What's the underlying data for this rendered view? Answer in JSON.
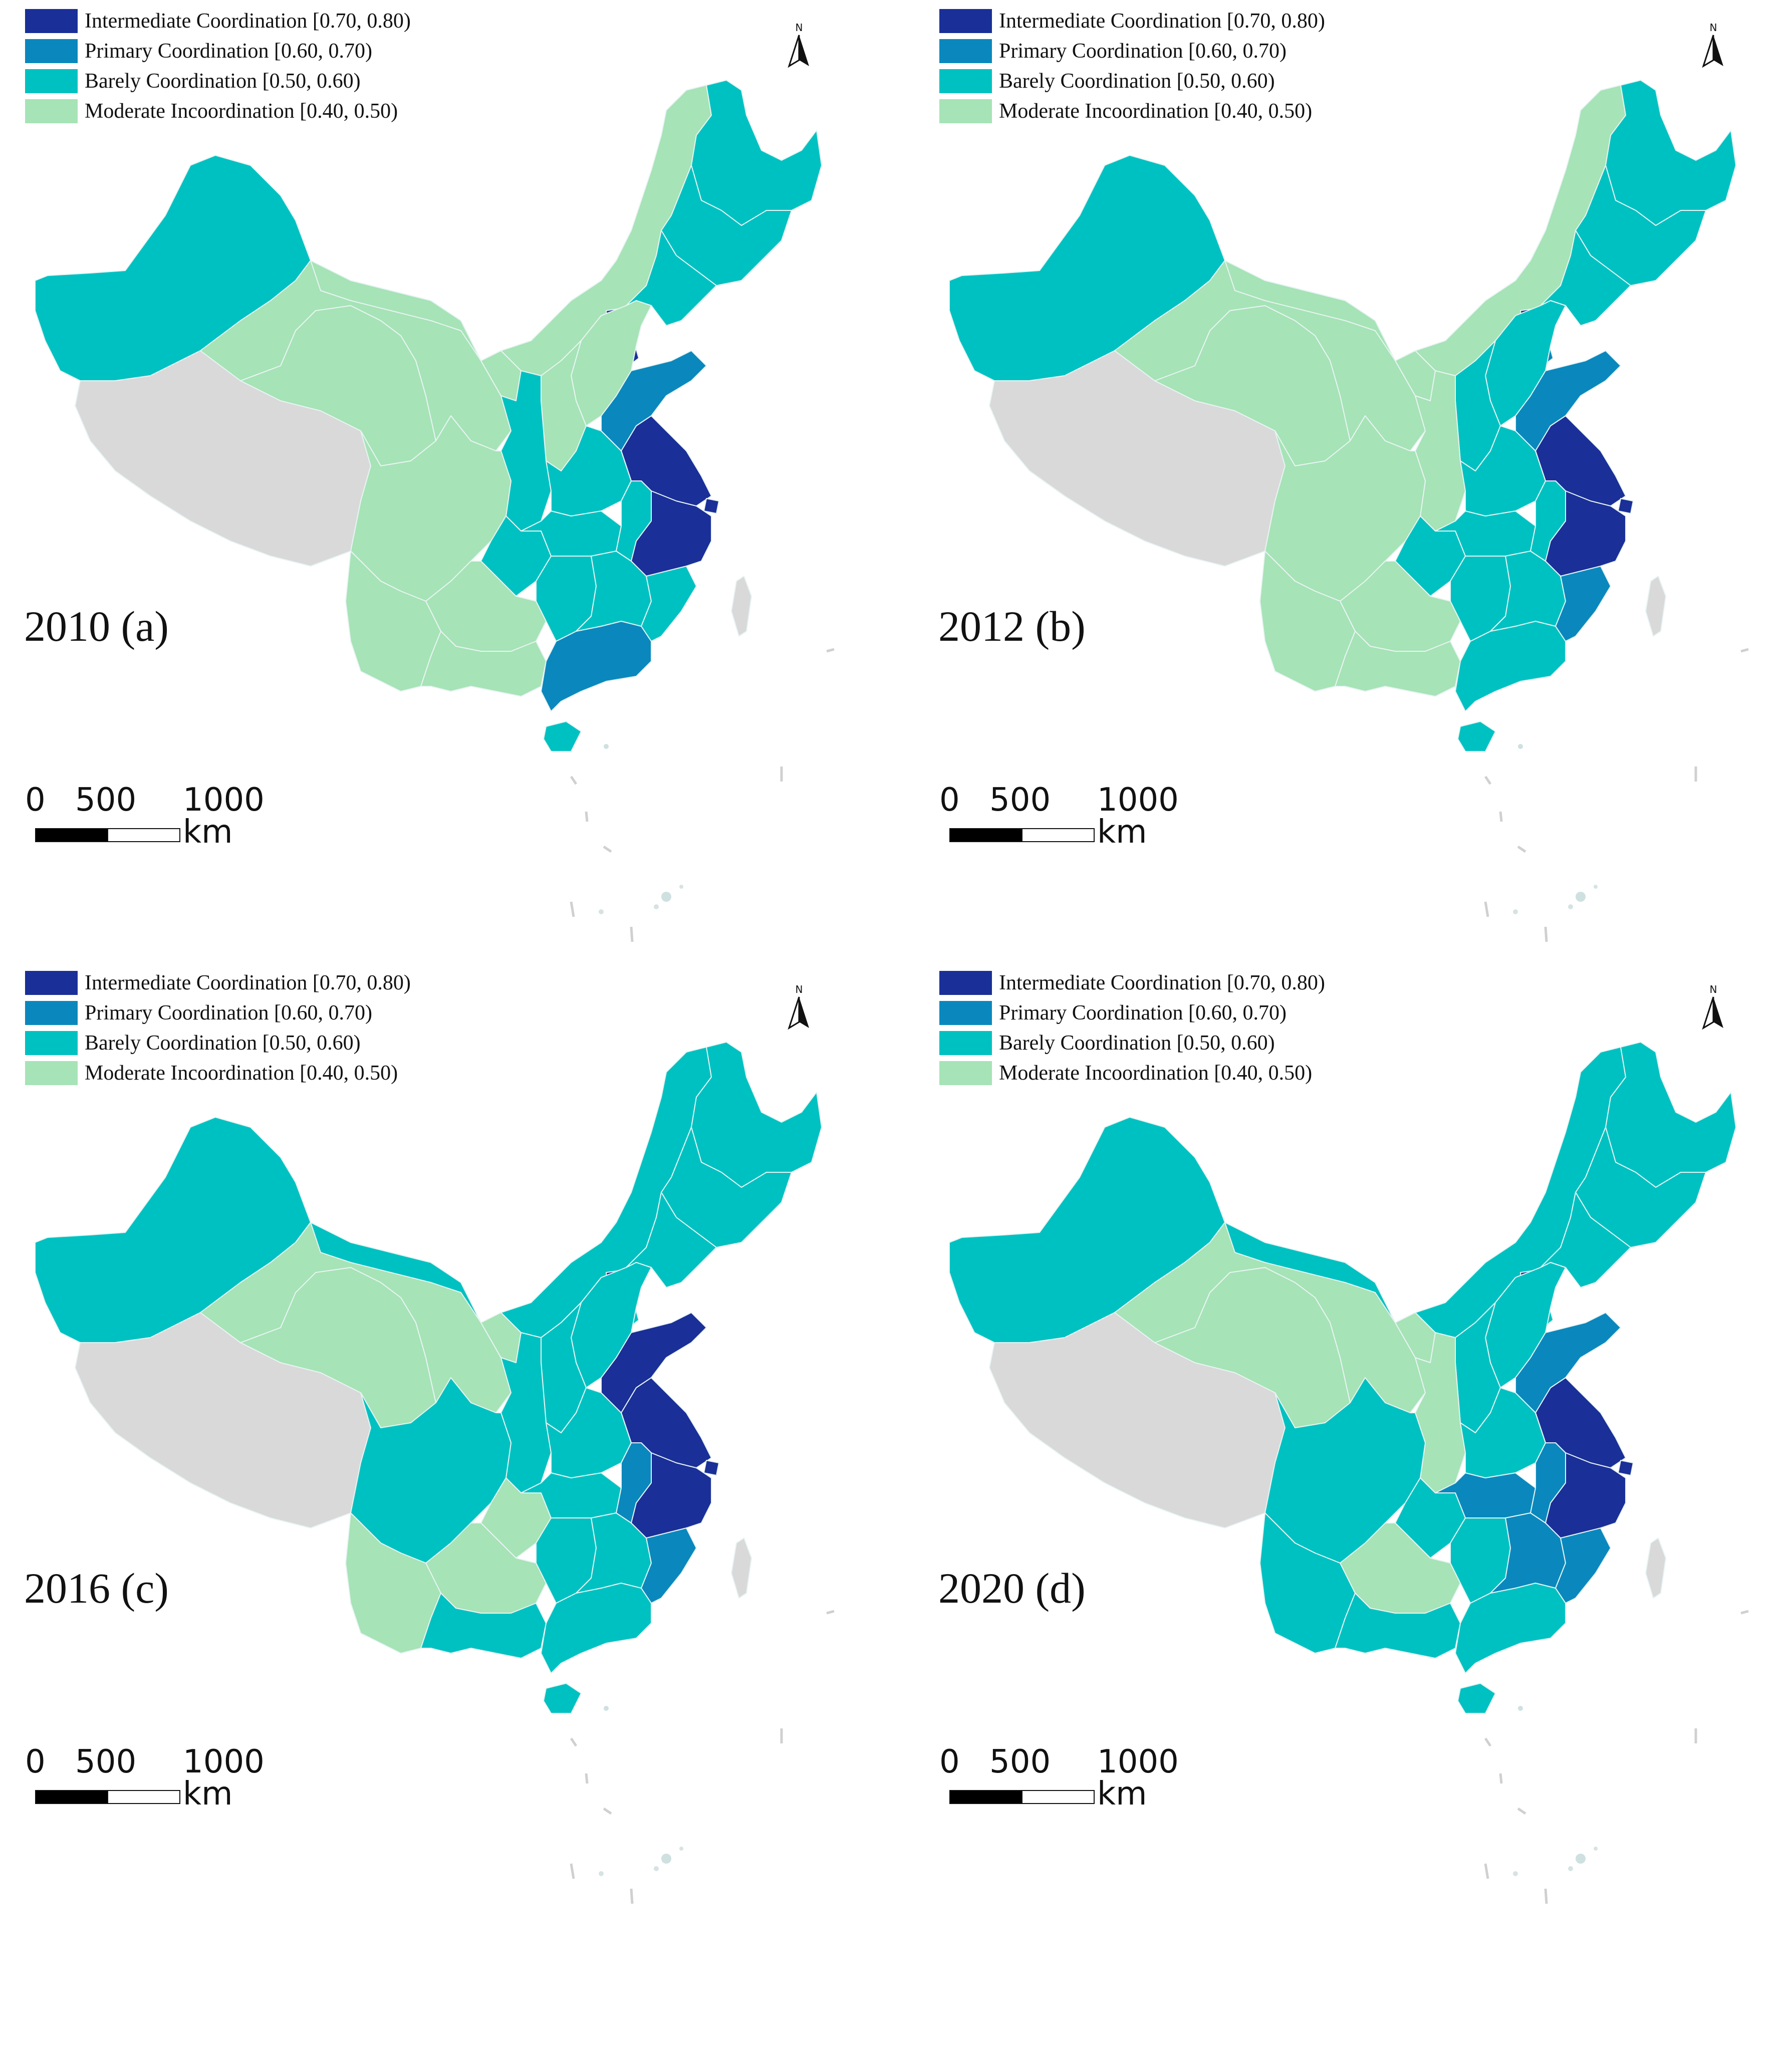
{
  "legend": [
    {
      "label": "Intermediate Coordination [0.70, 0.80)",
      "color": "#1a2f97"
    },
    {
      "label": "Primary Coordination [0.60, 0.70)",
      "color": "#0a88bd"
    },
    {
      "label": "Barely Coordination [0.50, 0.60)",
      "color": "#00c1c1"
    },
    {
      "label": "Moderate Incoordination [0.40, 0.50)",
      "color": "#a6e3b6"
    }
  ],
  "colors": {
    "no_data": "#d9d9d9",
    "border": "#e8f4f4",
    "text": "#111111"
  },
  "north_arrow": "N",
  "scale_bar": {
    "t0": "0",
    "t1": "500",
    "t2": "1000 km"
  },
  "panels": [
    {
      "label": "2010 (a)",
      "regions": {
        "xinjiang": 2,
        "xizang": -1,
        "qinghai": 3,
        "gansu": 3,
        "ningxia": 3,
        "neimenggu": 3,
        "heilongjiang": 2,
        "jilin": 2,
        "liaoning": 2,
        "beijing": 0,
        "tianjin": 0,
        "hebei": 3,
        "shanxi": 3,
        "shaanxi": 2,
        "sichuan": 3,
        "chongqing": 2,
        "yunnan": 3,
        "guizhou": 3,
        "guangxi": 3,
        "guangdong": 1,
        "hainan": 2,
        "henan": 2,
        "hubei": 2,
        "hunan": 2,
        "jiangxi": 2,
        "fujian": 2,
        "shandong": 1,
        "jiangsu": 0,
        "anhui": 2,
        "shanghai": 0,
        "zhejiang": 0,
        "taiwan": -1
      }
    },
    {
      "label": "2012 (b)",
      "regions": {
        "xinjiang": 2,
        "xizang": -1,
        "qinghai": 3,
        "gansu": 3,
        "ningxia": 3,
        "neimenggu": 3,
        "heilongjiang": 2,
        "jilin": 2,
        "liaoning": 2,
        "beijing": 0,
        "tianjin": 1,
        "hebei": 2,
        "shanxi": 2,
        "shaanxi": 3,
        "sichuan": 3,
        "chongqing": 2,
        "yunnan": 3,
        "guizhou": 3,
        "guangxi": 3,
        "guangdong": 2,
        "hainan": 2,
        "henan": 2,
        "hubei": 2,
        "hunan": 2,
        "jiangxi": 2,
        "fujian": 1,
        "shandong": 1,
        "jiangsu": 0,
        "anhui": 2,
        "shanghai": 0,
        "zhejiang": 0,
        "taiwan": -1
      }
    },
    {
      "label": "2016 (c)",
      "regions": {
        "xinjiang": 2,
        "xizang": -1,
        "qinghai": 3,
        "gansu": 3,
        "ningxia": 3,
        "neimenggu": 2,
        "heilongjiang": 2,
        "jilin": 2,
        "liaoning": 2,
        "beijing": 0,
        "tianjin": 2,
        "hebei": 2,
        "shanxi": 2,
        "shaanxi": 2,
        "sichuan": 2,
        "chongqing": 3,
        "yunnan": 3,
        "guizhou": 3,
        "guangxi": 2,
        "guangdong": 2,
        "hainan": 2,
        "henan": 2,
        "hubei": 2,
        "hunan": 2,
        "jiangxi": 2,
        "fujian": 1,
        "shandong": 0,
        "jiangsu": 0,
        "anhui": 1,
        "shanghai": 0,
        "zhejiang": 0,
        "taiwan": -1
      }
    },
    {
      "label": "2020 (d)",
      "regions": {
        "xinjiang": 2,
        "xizang": -1,
        "qinghai": 3,
        "gansu": 3,
        "ningxia": 3,
        "neimenggu": 2,
        "heilongjiang": 2,
        "jilin": 2,
        "liaoning": 2,
        "beijing": 0,
        "tianjin": 2,
        "hebei": 2,
        "shanxi": 2,
        "shaanxi": 3,
        "sichuan": 2,
        "chongqing": 2,
        "yunnan": 2,
        "guizhou": 3,
        "guangxi": 2,
        "guangdong": 2,
        "hainan": 2,
        "henan": 2,
        "hubei": 1,
        "hunan": 2,
        "jiangxi": 1,
        "fujian": 1,
        "shandong": 1,
        "jiangsu": 0,
        "anhui": 1,
        "shanghai": 0,
        "zhejiang": 0,
        "taiwan": -1
      }
    }
  ]
}
